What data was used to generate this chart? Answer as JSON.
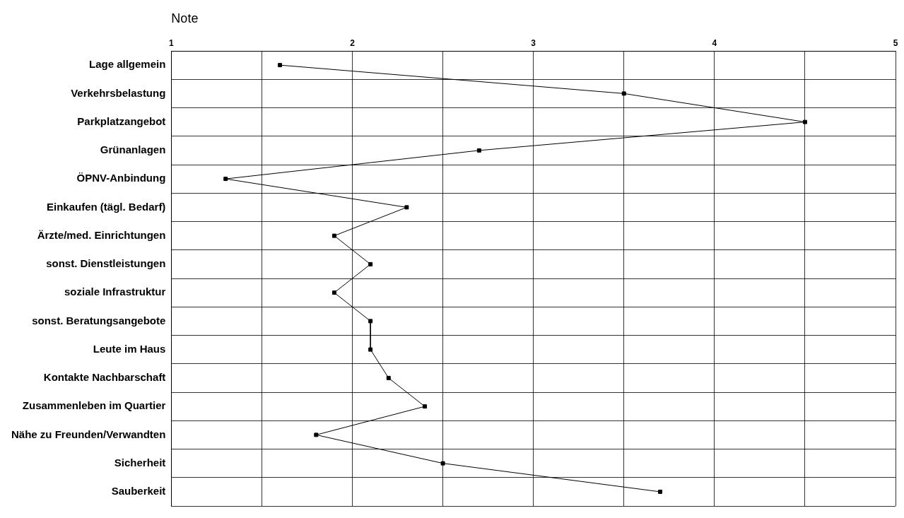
{
  "chart_data": {
    "type": "line",
    "orientation": "horizontal",
    "xlabel": "Note",
    "categories": [
      "Lage allgemein",
      "Verkehrsbelastung",
      "Parkplatzangebot",
      "Grünanlagen",
      "ÖPNV-Anbindung",
      "Einkaufen (tägl. Bedarf)",
      "Ärzte/med. Einrichtungen",
      "sonst. Dienstleistungen",
      "soziale Infrastruktur",
      "sonst. Beratungsangebote",
      "Leute im Haus",
      "Kontakte Nachbarschaft",
      "Zusammenleben im Quartier",
      "Nähe zu Freunden/Verwandten",
      "Sicherheit",
      "Sauberkeit"
    ],
    "series": [
      {
        "color": "#000000",
        "values": [
          1.6,
          3.5,
          4.5,
          2.7,
          1.3,
          2.3,
          1.9,
          2.1,
          1.9,
          2.1,
          2.1,
          2.2,
          2.4,
          1.8,
          2.5,
          3.7
        ]
      }
    ],
    "xlim": [
      1,
      5
    ],
    "xticks": [
      1,
      {
        "value": 1.5,
        "label": null
      },
      2,
      {
        "value": 2.5,
        "label": null
      },
      3,
      {
        "value": 3.5,
        "label": null
      },
      4,
      {
        "value": 4.5,
        "label": null
      },
      5
    ],
    "grid": true,
    "legend": false,
    "marker": "square",
    "line_style": "solid"
  }
}
